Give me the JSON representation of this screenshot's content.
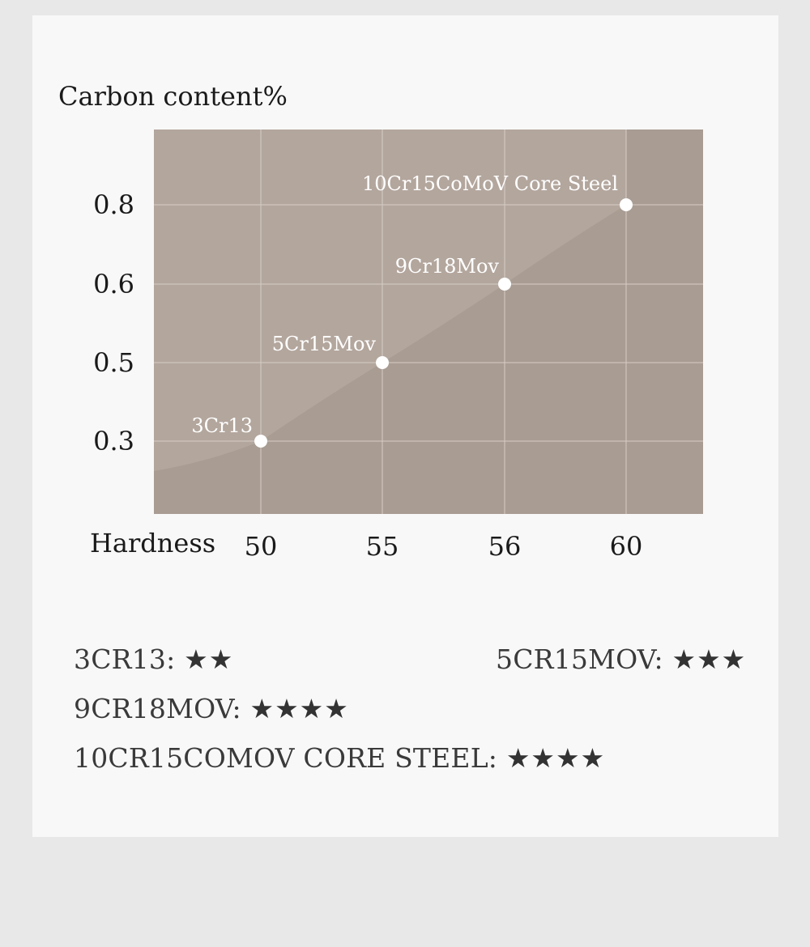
{
  "chart_data": {
    "type": "scatter",
    "ylabel": "Carbon content%",
    "xlabel": "Hardness",
    "x_ticks": [
      "50",
      "55",
      "56",
      "60"
    ],
    "y_ticks": [
      "0.3",
      "0.5",
      "0.6",
      "0.8"
    ],
    "points": [
      {
        "label": "3Cr13",
        "x": 50,
        "y": 0.3
      },
      {
        "label": "5Cr15Mov",
        "x": 55,
        "y": 0.5
      },
      {
        "label": "9Cr18Mov",
        "x": 56,
        "y": 0.6
      },
      {
        "label": "10Cr15CoMoV Core Steel",
        "x": 60,
        "y": 0.8
      }
    ],
    "grid": true,
    "colors": {
      "plot_bg": "#a89c93",
      "area_fill": "#c9bbb1",
      "grid": "#d7cdc6",
      "point": "#ffffff",
      "point_label": "#ffffff"
    }
  },
  "ratings": [
    {
      "name": "3CR13:",
      "stars": "★★",
      "score": 2
    },
    {
      "name": "5CR15MOV:",
      "stars": "★★★",
      "score": 3
    },
    {
      "name": "9CR18MOV:",
      "stars": "★★★★",
      "score": 4
    },
    {
      "name": "10CR15COMOV CORE STEEL:",
      "stars": "★★★★",
      "score": 4
    }
  ]
}
